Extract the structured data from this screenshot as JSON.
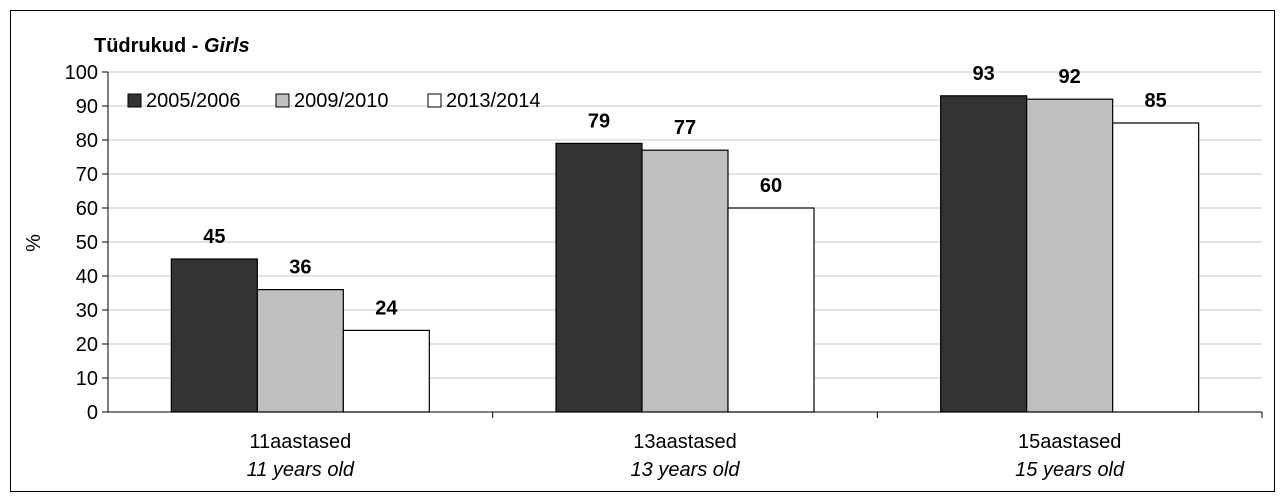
{
  "chart_data": {
    "type": "bar",
    "title": "Tüdrukud - ",
    "title_italic": "Girls",
    "ylabel": "%",
    "ylim": [
      0,
      100
    ],
    "yticks": [
      "0",
      "10",
      "20",
      "30",
      "40",
      "50",
      "60",
      "70",
      "80",
      "90",
      "100"
    ],
    "grid": true,
    "legend_position": "top-left",
    "categories": [
      {
        "line1": "11aastased",
        "line2": "11 years old"
      },
      {
        "line1": "13aastased",
        "line2": "13 years old"
      },
      {
        "line1": "15aastased",
        "line2": "15 years old"
      }
    ],
    "series": [
      {
        "name": "2005/2006",
        "color": "#333333",
        "values": [
          45,
          79,
          93
        ]
      },
      {
        "name": "2009/2010",
        "color": "#c0c0c0",
        "values": [
          36,
          77,
          92
        ]
      },
      {
        "name": "2013/2014",
        "color": "#ffffff",
        "values": [
          24,
          60,
          85
        ]
      }
    ]
  }
}
